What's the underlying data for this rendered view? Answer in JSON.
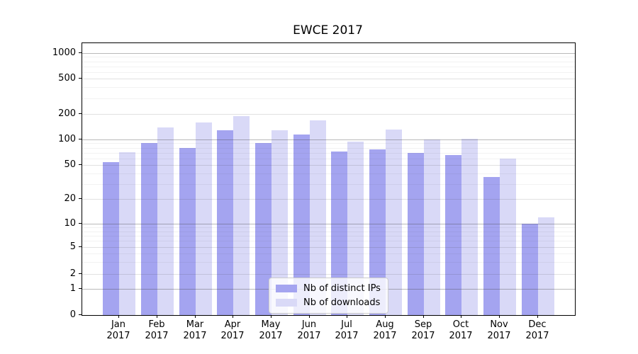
{
  "chart_data": {
    "type": "bar",
    "title": "EWCE 2017",
    "categories": [
      "Jan",
      "Feb",
      "Mar",
      "Apr",
      "May",
      "Jun",
      "Jul",
      "Aug",
      "Sep",
      "Oct",
      "Nov",
      "Dec"
    ],
    "x_tick_year": "2017",
    "series": [
      {
        "name": "Nb of distinct IPs",
        "color": "#a4a4f0",
        "values": [
          54,
          91,
          80,
          128,
          91,
          114,
          72,
          76,
          70,
          65,
          36,
          10
        ]
      },
      {
        "name": "Nb of downloads",
        "color": "#d9d9f7",
        "values": [
          71,
          139,
          160,
          190,
          128,
          168,
          94,
          130,
          100,
          102,
          59,
          12
        ]
      }
    ],
    "xlabel": "",
    "ylabel": "",
    "yscale": "log-like",
    "y_ticks": [
      0,
      1,
      2,
      5,
      10,
      20,
      50,
      100,
      200,
      500,
      1000
    ],
    "ylim": [
      0,
      1300
    ],
    "grid": "both",
    "legend_position": "lower center"
  }
}
